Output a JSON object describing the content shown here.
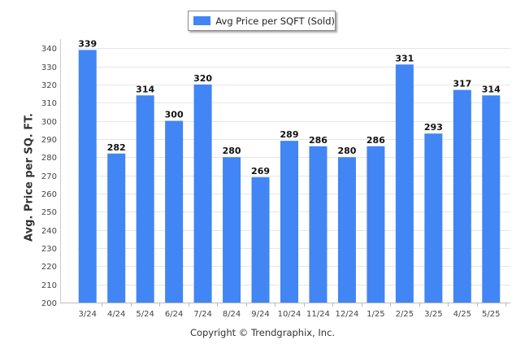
{
  "legend": {
    "label": "Avg Price per SQFT (Sold)",
    "color": "#4285f4"
  },
  "copyright": "Copyright © Trendgraphix, Inc.",
  "chart_data": {
    "type": "bar",
    "title": "",
    "xlabel": "",
    "ylabel": "Avg. Price per SQ. FT.",
    "ylim": [
      200,
      345
    ],
    "yticks": [
      200,
      210,
      220,
      230,
      240,
      250,
      260,
      270,
      280,
      290,
      300,
      310,
      320,
      330,
      340
    ],
    "grid": true,
    "legend_position": "top-center",
    "categories": [
      "3/24",
      "4/24",
      "5/24",
      "6/24",
      "7/24",
      "8/24",
      "9/24",
      "10/24",
      "11/24",
      "12/24",
      "1/25",
      "2/25",
      "3/25",
      "4/25",
      "5/25"
    ],
    "series": [
      {
        "name": "Avg Price per SQFT (Sold)",
        "color": "#4285f4",
        "values": [
          339,
          282,
          314,
          300,
          320,
          280,
          269,
          289,
          286,
          280,
          286,
          331,
          293,
          317,
          314
        ]
      }
    ]
  }
}
